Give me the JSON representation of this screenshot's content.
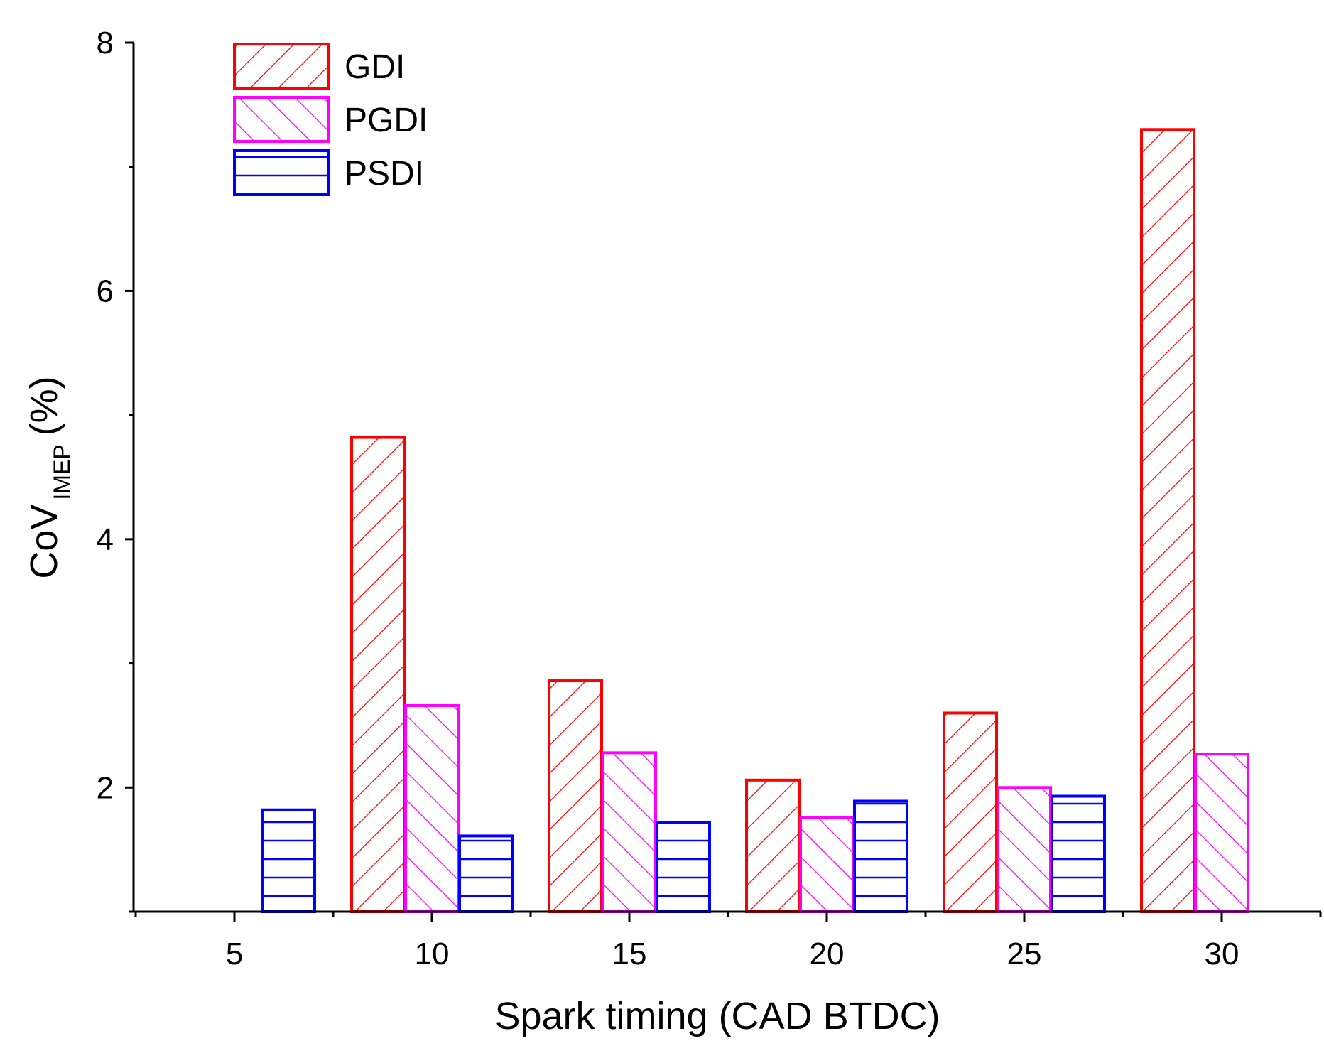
{
  "chart_data": {
    "type": "bar",
    "title": "",
    "xlabel": "Spark timing (CAD BTDC)",
    "ylabel": {
      "main": "CoV",
      "subscript": "IMEP",
      "unit": "(%)"
    },
    "categories": [
      "5",
      "10",
      "15",
      "20",
      "25",
      "30"
    ],
    "ylim": [
      1,
      8
    ],
    "yticks": [
      "2",
      "4",
      "6",
      "8"
    ],
    "legend_position": "top-left",
    "grid": false,
    "series": [
      {
        "name": "GDI",
        "color": "#ff0000",
        "pattern": "diagonal-forward",
        "values": [
          null,
          4.82,
          2.86,
          2.06,
          2.6,
          7.3
        ]
      },
      {
        "name": "PGDI",
        "color": "#ff00ff",
        "pattern": "diagonal-backward",
        "values": [
          null,
          2.66,
          2.28,
          1.76,
          2.0,
          2.27
        ]
      },
      {
        "name": "PSDI",
        "color": "#0000ff",
        "pattern": "horizontal",
        "values": [
          1.82,
          1.61,
          1.72,
          1.89,
          1.93,
          null
        ]
      }
    ]
  }
}
